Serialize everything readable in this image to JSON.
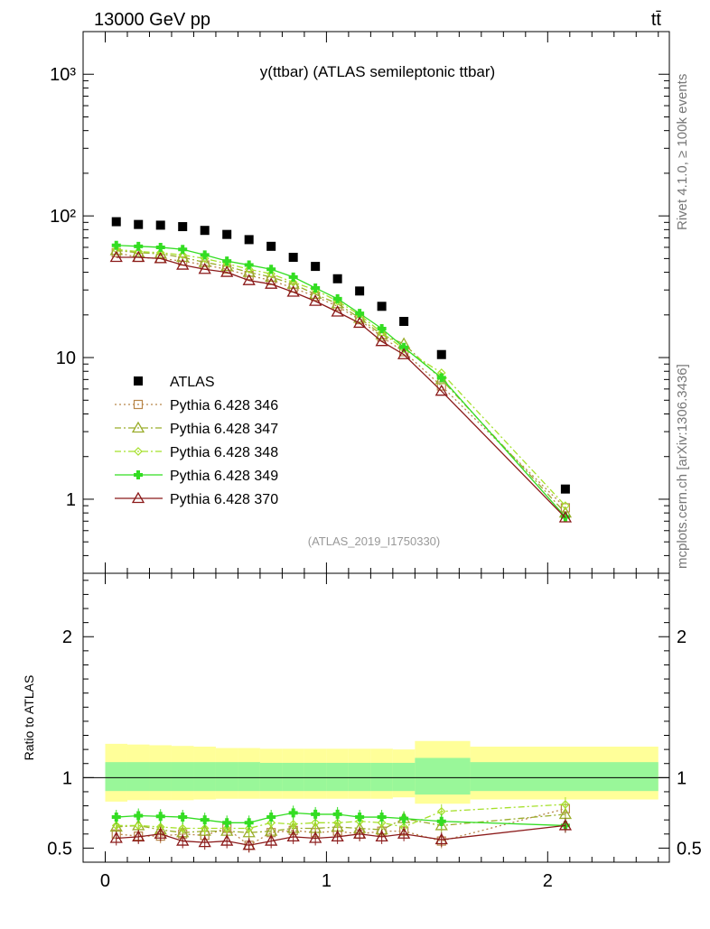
{
  "header": {
    "left_label": "13000 GeV pp",
    "right_label": "tt̄",
    "side_label_top": "Rivet 4.1.0, ≥ 100k events",
    "side_label_bottom": "mcplots.cern.ch [arXiv:1306.3436]"
  },
  "chart_data": [
    {
      "type": "scatter",
      "panel": "main",
      "title": "y(ttbar) (ATLAS semileptonic ttbar)",
      "watermark": "(ATLAS_2019_I1750330)",
      "yscale": "log",
      "xlim": [
        -0.1,
        2.55
      ],
      "ylim": [
        0.3,
        2000
      ],
      "ytick_labels": [
        "1",
        "10",
        "10²",
        "10³"
      ],
      "ytick_values": [
        1,
        10,
        100,
        1000
      ],
      "x_bin_edges": [
        0,
        0.1,
        0.2,
        0.3,
        0.4,
        0.5,
        0.6,
        0.7,
        0.8,
        0.9,
        1.0,
        1.1,
        1.2,
        1.3,
        1.4,
        1.65,
        2.5
      ],
      "x": [
        0.05,
        0.15,
        0.25,
        0.35,
        0.45,
        0.55,
        0.65,
        0.75,
        0.85,
        0.95,
        1.05,
        1.15,
        1.25,
        1.35,
        1.52,
        2.08
      ],
      "legend_position": "middle-left",
      "series": [
        {
          "name": "ATLAS",
          "color": "#000000",
          "marker": "square-filled",
          "dash": "none",
          "values": [
            91,
            87,
            86,
            84,
            79,
            74,
            68,
            61,
            51,
            44,
            36,
            29.5,
            23,
            18,
            10.5,
            1.18
          ]
        },
        {
          "name": "Pythia 6.428 346",
          "color": "#b8864a",
          "marker": "square-open",
          "dash": "dotted",
          "values": [
            55,
            51,
            50,
            48,
            45,
            42,
            38,
            35,
            31,
            27,
            23,
            18.5,
            14,
            11,
            6.3,
            0.87
          ]
        },
        {
          "name": "Pythia 6.428 347",
          "color": "#9aad2b",
          "marker": "triangle-open",
          "dash": "dashdot",
          "values": [
            57,
            55,
            54,
            51,
            47,
            44,
            40,
            37,
            33,
            28,
            24,
            19,
            14.5,
            12.5,
            7.0,
            0.8
          ]
        },
        {
          "name": "Pythia 6.428 348",
          "color": "#a5e02a",
          "marker": "diamond-open",
          "dash": "dashdot",
          "values": [
            58,
            56,
            55,
            53,
            50,
            46,
            42,
            39,
            34,
            30,
            25,
            20,
            15,
            11.5,
            7.8,
            0.9
          ]
        },
        {
          "name": "Pythia 6.428 349",
          "color": "#33dd22",
          "marker": "cross-filled",
          "dash": "solid",
          "values": [
            62,
            61,
            60,
            58,
            53,
            48,
            45,
            42,
            37,
            31,
            26,
            20.5,
            16,
            11.8,
            7.2,
            0.75
          ]
        },
        {
          "name": "Pythia 6.428 370",
          "color": "#8b1a1a",
          "marker": "triangle-open",
          "dash": "solid",
          "values": [
            51,
            51,
            50,
            45,
            42,
            40,
            35,
            33,
            29,
            25,
            21,
            17.5,
            13,
            10.5,
            5.8,
            0.74
          ]
        }
      ]
    },
    {
      "type": "scatter",
      "panel": "ratio",
      "ylabel": "Ratio to ATLAS",
      "xlim": [
        -0.1,
        2.55
      ],
      "ylim": [
        0.4,
        2.45
      ],
      "ytick_labels": [
        "0.5",
        "1",
        "2"
      ],
      "ytick_values": [
        0.5,
        1,
        2
      ],
      "xtick_labels": [
        "0",
        "1",
        "2"
      ],
      "xtick_values": [
        0,
        1,
        2
      ],
      "reference_line": 1,
      "bands": {
        "edges": [
          0,
          0.1,
          0.2,
          0.3,
          0.4,
          0.5,
          0.6,
          0.7,
          0.8,
          0.9,
          1.0,
          1.1,
          1.2,
          1.3,
          1.4,
          1.65,
          2.5
        ],
        "inner_low": [
          0.905,
          0.905,
          0.905,
          0.905,
          0.905,
          0.905,
          0.905,
          0.905,
          0.905,
          0.905,
          0.905,
          0.905,
          0.905,
          0.905,
          0.88,
          0.905
        ],
        "inner_high": [
          1.11,
          1.11,
          1.11,
          1.11,
          1.11,
          1.11,
          1.11,
          1.105,
          1.105,
          1.105,
          1.105,
          1.105,
          1.105,
          1.105,
          1.14,
          1.11
        ],
        "outer_low": [
          0.83,
          0.84,
          0.84,
          0.84,
          0.845,
          0.85,
          0.85,
          0.85,
          0.85,
          0.85,
          0.85,
          0.85,
          0.85,
          0.86,
          0.815,
          0.845
        ],
        "outer_high": [
          1.24,
          1.235,
          1.23,
          1.225,
          1.22,
          1.21,
          1.21,
          1.205,
          1.205,
          1.205,
          1.205,
          1.205,
          1.205,
          1.2,
          1.26,
          1.22
        ],
        "inner_color": "#99f799",
        "outer_color": "#ffff99"
      },
      "x": [
        0.05,
        0.15,
        0.25,
        0.35,
        0.45,
        0.55,
        0.65,
        0.75,
        0.85,
        0.95,
        1.05,
        1.15,
        1.25,
        1.35,
        1.52,
        2.08
      ],
      "series": [
        {
          "name": "Pythia 6.428 346",
          "color": "#b8864a",
          "marker": "square-open",
          "dash": "dotted",
          "values": [
            0.6,
            0.585,
            0.585,
            0.6,
            0.59,
            0.64,
            0.52,
            0.61,
            0.625,
            0.61,
            0.62,
            0.6,
            0.62,
            0.62,
            0.55,
            0.78
          ]
        },
        {
          "name": "Pythia 6.428 347",
          "color": "#9aad2b",
          "marker": "triangle-open",
          "dash": "dashdot",
          "values": [
            0.65,
            0.66,
            0.63,
            0.61,
            0.62,
            0.62,
            0.61,
            0.62,
            0.64,
            0.64,
            0.65,
            0.64,
            0.63,
            0.71,
            0.66,
            0.74
          ]
        },
        {
          "name": "Pythia 6.428 348",
          "color": "#a5e02a",
          "marker": "diamond-open",
          "dash": "dashdot",
          "values": [
            0.66,
            0.66,
            0.65,
            0.64,
            0.64,
            0.64,
            0.64,
            0.68,
            0.67,
            0.68,
            0.68,
            0.69,
            0.68,
            0.65,
            0.76,
            0.81
          ]
        },
        {
          "name": "Pythia 6.428 349",
          "color": "#33dd22",
          "marker": "cross-filled",
          "dash": "solid",
          "values": [
            0.72,
            0.73,
            0.725,
            0.72,
            0.7,
            0.68,
            0.68,
            0.72,
            0.75,
            0.74,
            0.74,
            0.72,
            0.72,
            0.71,
            0.69,
            0.66
          ]
        },
        {
          "name": "Pythia 6.428 370",
          "color": "#8b1a1a",
          "marker": "triangle-open",
          "dash": "solid",
          "values": [
            0.57,
            0.58,
            0.6,
            0.55,
            0.54,
            0.55,
            0.52,
            0.55,
            0.58,
            0.57,
            0.58,
            0.6,
            0.58,
            0.6,
            0.56,
            0.66
          ]
        }
      ]
    }
  ]
}
